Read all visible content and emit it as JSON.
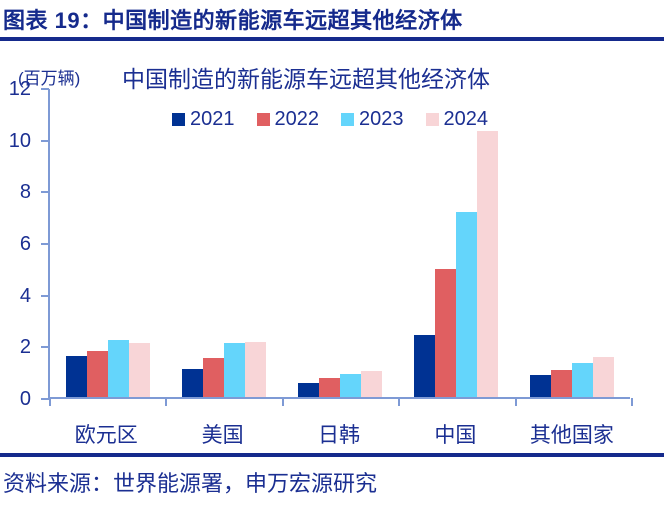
{
  "header": {
    "title": "图表 19：中国制造的新能源车远超其他经济体"
  },
  "footer": {
    "source": "资料来源：世界能源署，申万宏源研究"
  },
  "chart_data": {
    "type": "bar",
    "title": "中国制造的新能源车远超其他经济体",
    "unit_label": "(百万辆)",
    "categories": [
      "欧元区",
      "美国",
      "日韩",
      "中国",
      "其他国家"
    ],
    "series": [
      {
        "name": "2021",
        "color": "#003293",
        "values": [
          1.6,
          1.1,
          0.55,
          2.4,
          0.85
        ]
      },
      {
        "name": "2022",
        "color": "#e05f61",
        "values": [
          1.8,
          1.5,
          0.75,
          4.95,
          1.05
        ]
      },
      {
        "name": "2023",
        "color": "#64d5fb",
        "values": [
          2.2,
          2.1,
          0.9,
          7.15,
          1.3
        ]
      },
      {
        "name": "2024",
        "color": "#f8d5d7",
        "values": [
          2.1,
          2.15,
          1.0,
          10.3,
          1.55
        ]
      }
    ],
    "ylim": [
      0,
      12
    ],
    "yticks": [
      0,
      2,
      4,
      6,
      8,
      10,
      12
    ],
    "xlabel": "",
    "ylabel": "(百万辆)",
    "legend_position": "top",
    "grid": false,
    "colors": {
      "text_navy": "#1b2f92",
      "rule_navy": "#152a8c",
      "axis_line": "#7e9ad5"
    }
  }
}
